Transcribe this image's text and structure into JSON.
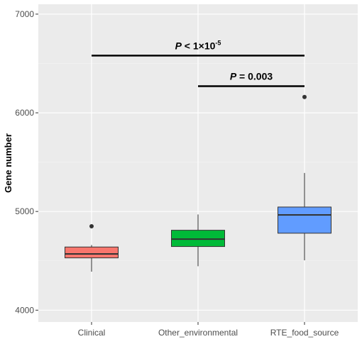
{
  "chart_data": {
    "type": "box",
    "ylabel": "Gene number",
    "xlabel": "",
    "ylim": [
      3880,
      7100
    ],
    "yticks": [
      4000,
      5000,
      6000,
      7000
    ],
    "grid": true,
    "categories": [
      "Clinical",
      "Other_environmental",
      "RTE_food_source"
    ],
    "boxes": [
      {
        "category": "Clinical",
        "color": "#F8766D",
        "whisker_low": 4390,
        "q1": 4530,
        "median": 4570,
        "q3": 4640,
        "whisker_high": 4660,
        "outliers": [
          4850
        ]
      },
      {
        "category": "Other_environmental",
        "color": "#00BA38",
        "whisker_low": 4445,
        "q1": 4645,
        "median": 4720,
        "q3": 4810,
        "whisker_high": 4970,
        "outliers": []
      },
      {
        "category": "RTE_food_source",
        "color": "#619CFF",
        "whisker_low": 4505,
        "q1": 4780,
        "median": 4965,
        "q3": 5045,
        "whisker_high": 5390,
        "outliers": [
          6160
        ]
      }
    ],
    "annotations": [
      {
        "from": "Clinical",
        "to": "RTE_food_source",
        "y": 6580,
        "p_prefix": "P",
        "p_text": " < 1×10",
        "p_exp": "-5"
      },
      {
        "from": "Other_environmental",
        "to": "RTE_food_source",
        "y": 6270,
        "p_prefix": "P",
        "p_text": " = 0.003",
        "p_exp": ""
      }
    ]
  }
}
